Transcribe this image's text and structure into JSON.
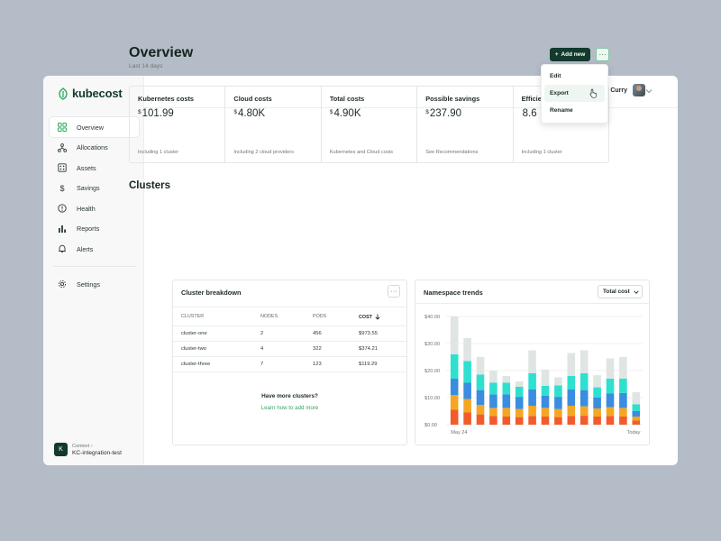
{
  "brand": {
    "name": "kubecost"
  },
  "user": {
    "name": "Zachary Curry"
  },
  "sidebar": {
    "items": [
      {
        "label": "Overview",
        "icon": "grid-icon",
        "active": true
      },
      {
        "label": "Allocations",
        "icon": "network-icon"
      },
      {
        "label": "Assets",
        "icon": "assets-icon"
      },
      {
        "label": "Savings",
        "icon": "dollar-icon"
      },
      {
        "label": "Health",
        "icon": "alert-circle-icon"
      },
      {
        "label": "Reports",
        "icon": "bar-chart-icon"
      },
      {
        "label": "Alerts",
        "icon": "bell-icon"
      }
    ],
    "settings_label": "Settings",
    "context": {
      "label": "Context",
      "name": "KC-integration-test",
      "badge": "K"
    }
  },
  "header": {
    "title": "Overview",
    "subtitle": "Last 14 days",
    "add_label": "Add new",
    "more_label": "···"
  },
  "menu": {
    "items": [
      "Edit",
      "Export",
      "Rename"
    ]
  },
  "stats": [
    {
      "label": "Kubernetes costs",
      "currency": "$",
      "value": "101.99",
      "note": "Including 1 cluster"
    },
    {
      "label": "Cloud costs",
      "currency": "$",
      "value": "4.80K",
      "note": "Including 2 cloud providers"
    },
    {
      "label": "Total costs",
      "currency": "$",
      "value": "4.90K",
      "note": "Kubernetes and Cloud costs"
    },
    {
      "label": "Possible savings",
      "currency": "$",
      "value": "237.90",
      "note": "See Recommendations"
    },
    {
      "label": "Efficie",
      "currency": "",
      "value": "8.6",
      "note": "Including 1 cluster"
    }
  ],
  "clusters_title": "Clusters",
  "breakdown": {
    "title": "Cluster breakdown",
    "more_label": "···",
    "columns": [
      "CLUSTER",
      "NODES",
      "PODS",
      "COST"
    ],
    "rows": [
      [
        "cluster-one",
        "2",
        "456",
        "$973.55"
      ],
      [
        "cluster-two",
        "4",
        "322",
        "$374.21"
      ],
      [
        "cluster-three",
        "7",
        "123",
        "$119.29"
      ]
    ],
    "more_title": "Have more clusters?",
    "more_link": "Learn how to add more"
  },
  "trends": {
    "title": "Namespace trends",
    "select_value": "Total cost"
  },
  "chart_data": {
    "type": "bar",
    "stacked": true,
    "y_ticks": [
      "$40.00",
      "$30.00",
      "$20.00",
      "$10.00",
      "$0.00"
    ],
    "ylim": [
      0,
      40
    ],
    "x_labels": [
      "May 24",
      "Today"
    ],
    "categories": [
      "1",
      "2",
      "3",
      "4",
      "5",
      "6",
      "7",
      "8",
      "9",
      "10",
      "11",
      "12",
      "13",
      "14",
      "15"
    ],
    "series": [
      {
        "color": "#f25c2c",
        "values": [
          5.5,
          4.5,
          3.8,
          3.2,
          3.0,
          2.8,
          3.2,
          3.0,
          2.8,
          3.2,
          3.3,
          3.0,
          3.2,
          3.0,
          1.5
        ]
      },
      {
        "color": "#f6a623",
        "values": [
          5.5,
          5.0,
          3.5,
          3.0,
          3.2,
          3.0,
          3.8,
          3.2,
          3.0,
          3.8,
          3.5,
          3.0,
          3.3,
          3.2,
          1.5
        ]
      },
      {
        "color": "#3a8de0",
        "values": [
          6.0,
          6.0,
          5.5,
          5.0,
          5.0,
          4.5,
          6.0,
          4.5,
          4.5,
          6.0,
          6.0,
          4.0,
          5.0,
          5.5,
          2.0
        ]
      },
      {
        "color": "#2fe0cf",
        "values": [
          9.0,
          8.0,
          5.7,
          4.3,
          4.3,
          3.7,
          6.0,
          3.7,
          4.2,
          5.0,
          6.2,
          3.8,
          5.5,
          5.3,
          2.5
        ]
      },
      {
        "color": "#dfe5e3",
        "values": [
          14.0,
          8.5,
          6.5,
          4.5,
          2.5,
          2.0,
          8.5,
          6.0,
          3.0,
          8.5,
          8.5,
          4.5,
          7.5,
          8.0,
          4.5
        ]
      }
    ]
  },
  "colors": {
    "accent": "#123a2d",
    "link": "#36a267"
  }
}
